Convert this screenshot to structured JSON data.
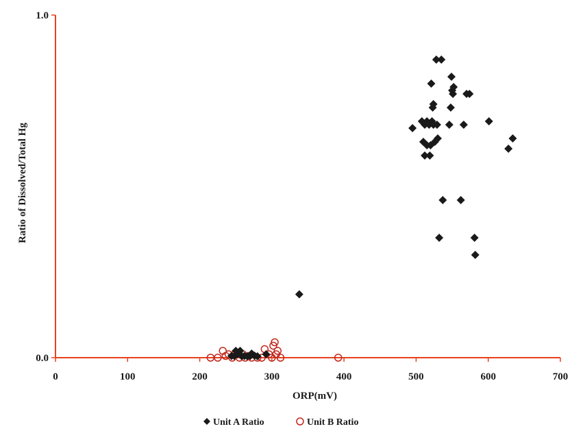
{
  "chart_data": {
    "type": "scatter",
    "title": "",
    "xlabel": "ORP(mV)",
    "ylabel": "Ratio of Dissolved/Total Hg",
    "xlim": [
      0,
      700
    ],
    "ylim": [
      0.0,
      1.0
    ],
    "x_ticks": [
      "0",
      "100",
      "200",
      "300",
      "400",
      "500",
      "600",
      "700"
    ],
    "y_ticks": [
      "0.0",
      "1.0"
    ],
    "grid": false,
    "legend_position": "bottom",
    "axis_color": "#e8401c",
    "series": [
      {
        "name": "Unit A Ratio",
        "marker": "filled-diamond",
        "color": "#1a1a1a",
        "points": [
          [
            338,
            0.185
          ],
          [
            495,
            0.67
          ],
          [
            508,
            0.69
          ],
          [
            512,
            0.68
          ],
          [
            515,
            0.69
          ],
          [
            518,
            0.68
          ],
          [
            522,
            0.69
          ],
          [
            524,
            0.68
          ],
          [
            529,
            0.68
          ],
          [
            510,
            0.63
          ],
          [
            515,
            0.62
          ],
          [
            520,
            0.62
          ],
          [
            526,
            0.63
          ],
          [
            530,
            0.64
          ],
          [
            512,
            0.59
          ],
          [
            519,
            0.59
          ],
          [
            521,
            0.8
          ],
          [
            523,
            0.73
          ],
          [
            524,
            0.74
          ],
          [
            528,
            0.87
          ],
          [
            535,
            0.87
          ],
          [
            537,
            0.46
          ],
          [
            532,
            0.35
          ],
          [
            546,
            0.68
          ],
          [
            548,
            0.73
          ],
          [
            549,
            0.82
          ],
          [
            550,
            0.78
          ],
          [
            552,
            0.79
          ],
          [
            551,
            0.77
          ],
          [
            562,
            0.46
          ],
          [
            566,
            0.68
          ],
          [
            570,
            0.77
          ],
          [
            574,
            0.77
          ],
          [
            581,
            0.35
          ],
          [
            582,
            0.3
          ],
          [
            601,
            0.69
          ],
          [
            628,
            0.61
          ],
          [
            634,
            0.64
          ],
          [
            244,
            0.005
          ],
          [
            248,
            0.005
          ],
          [
            252,
            0.01
          ],
          [
            256,
            0.02
          ],
          [
            258,
            0.005
          ],
          [
            262,
            0.005
          ],
          [
            266,
            0.004
          ],
          [
            270,
            0.005
          ],
          [
            276,
            0.006
          ],
          [
            280,
            0.004
          ],
          [
            292,
            0.01
          ],
          [
            250,
            0.02
          ],
          [
            272,
            0.012
          ]
        ]
      },
      {
        "name": "Unit B Ratio",
        "marker": "open-circle",
        "color": "#c0281c",
        "points": [
          [
            215,
            0.0
          ],
          [
            225,
            0.0
          ],
          [
            232,
            0.02
          ],
          [
            236,
            0.005
          ],
          [
            240,
            0.01
          ],
          [
            245,
            0.0
          ],
          [
            250,
            0.015
          ],
          [
            255,
            0.0
          ],
          [
            260,
            0.01
          ],
          [
            263,
            0.0
          ],
          [
            268,
            0.005
          ],
          [
            272,
            0.0
          ],
          [
            280,
            0.0
          ],
          [
            286,
            0.0
          ],
          [
            290,
            0.025
          ],
          [
            296,
            0.01
          ],
          [
            300,
            0.0
          ],
          [
            302,
            0.035
          ],
          [
            304,
            0.045
          ],
          [
            306,
            0.01
          ],
          [
            308,
            0.02
          ],
          [
            312,
            0.0
          ],
          [
            392,
            0.0
          ]
        ]
      }
    ]
  }
}
